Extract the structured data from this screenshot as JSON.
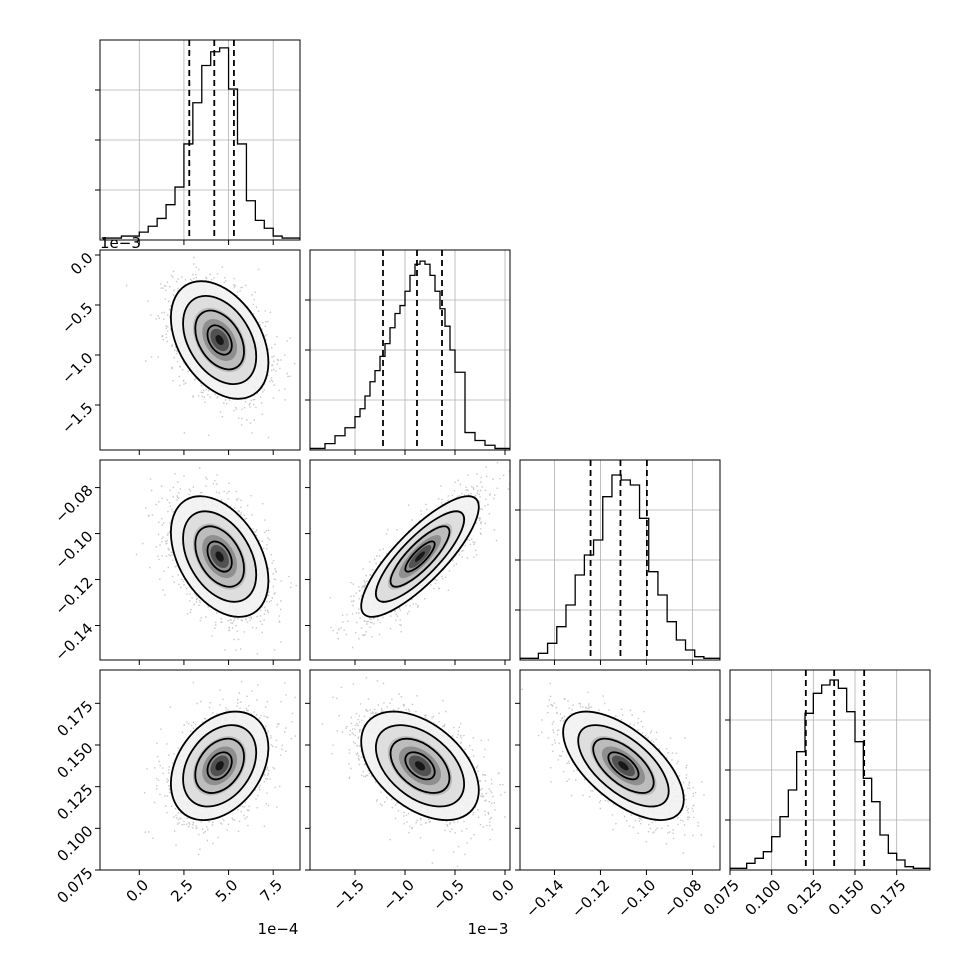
{
  "chart_data": {
    "type": "corner",
    "parameters": [
      {
        "range": [
          -2.2,
          9.0
        ],
        "ticks": [
          0.0,
          2.5,
          5.0,
          7.5
        ],
        "tick_labels": [
          "0.0",
          "2.5",
          "5.0",
          "7.5"
        ],
        "offset_label": "1e−4",
        "quantiles": [
          2.8,
          4.2,
          5.3
        ],
        "hist": {
          "edges": [
            -2.0,
            -1.0,
            0.0,
            0.5,
            1.0,
            1.5,
            2.0,
            2.5,
            3.0,
            3.5,
            4.0,
            4.5,
            5.0,
            5.5,
            6.0,
            6.5,
            7.0,
            7.5,
            8.0,
            9.0
          ],
          "counts": [
            0.05,
            0.1,
            0.2,
            0.35,
            0.55,
            0.9,
            1.35,
            2.45,
            3.5,
            4.45,
            4.8,
            4.9,
            3.85,
            2.45,
            1.0,
            0.5,
            0.3,
            0.1,
            0.05
          ],
          "ymax": 5.1
        }
      },
      {
        "range": [
          -1.95,
          0.05
        ],
        "ticks": [
          -1.5,
          -1.0,
          -0.5,
          0.0
        ],
        "tick_labels": [
          "−1.5",
          "−1.0",
          "−0.5",
          "0.0"
        ],
        "offset_label": "1e−3",
        "quantiles": [
          -1.22,
          -0.88,
          -0.63
        ],
        "hist": {
          "edges": [
            -1.95,
            -1.8,
            -1.7,
            -1.6,
            -1.5,
            -1.45,
            -1.4,
            -1.35,
            -1.3,
            -1.25,
            -1.2,
            -1.15,
            -1.1,
            -1.05,
            -1.0,
            -0.95,
            -0.9,
            -0.85,
            -0.8,
            -0.75,
            -0.7,
            -0.65,
            -0.6,
            -0.55,
            -0.5,
            -0.4,
            -0.3,
            -0.2,
            -0.1,
            0.05
          ],
          "counts": [
            0.05,
            0.2,
            0.45,
            0.7,
            1.05,
            1.3,
            1.7,
            2.15,
            2.5,
            2.95,
            3.35,
            3.85,
            4.3,
            4.55,
            5.0,
            5.5,
            5.85,
            5.95,
            5.85,
            5.5,
            5.0,
            4.45,
            3.9,
            3.15,
            2.45,
            0.55,
            0.3,
            0.15,
            0.05
          ],
          "ymax": 6.3
        }
      },
      {
        "range": [
          -0.155,
          -0.068
        ],
        "ticks": [
          -0.14,
          -0.12,
          -0.1,
          -0.08
        ],
        "tick_labels": [
          "−0.14",
          "−0.12",
          "−0.10",
          "−0.08"
        ],
        "offset_label": "",
        "quantiles": [
          -0.1243,
          -0.1113,
          -0.0998
        ],
        "hist": {
          "edges": [
            -0.155,
            -0.147,
            -0.143,
            -0.139,
            -0.135,
            -0.131,
            -0.127,
            -0.123,
            -0.119,
            -0.115,
            -0.111,
            -0.107,
            -0.103,
            -0.099,
            -0.095,
            -0.091,
            -0.087,
            -0.083,
            -0.079,
            -0.075,
            -0.068
          ],
          "counts": [
            0.05,
            0.2,
            0.5,
            1.0,
            1.65,
            2.55,
            3.15,
            3.6,
            4.9,
            5.55,
            5.4,
            5.25,
            4.25,
            2.65,
            1.95,
            1.15,
            0.6,
            0.3,
            0.1,
            0.05
          ],
          "ymax": 6.0
        }
      },
      {
        "range": [
          0.075,
          0.195
        ],
        "ticks": [
          0.075,
          0.1,
          0.125,
          0.15,
          0.175
        ],
        "tick_labels": [
          "0.075",
          "0.100",
          "0.125",
          "0.150",
          "0.175"
        ],
        "offset_label": "",
        "quantiles": [
          0.1205,
          0.1375,
          0.1555
        ],
        "hist": {
          "edges": [
            0.075,
            0.085,
            0.09,
            0.095,
            0.1,
            0.105,
            0.11,
            0.115,
            0.12,
            0.125,
            0.13,
            0.135,
            0.14,
            0.145,
            0.15,
            0.155,
            0.16,
            0.165,
            0.17,
            0.175,
            0.18,
            0.185,
            0.195
          ],
          "counts": [
            0.05,
            0.2,
            0.35,
            0.55,
            1.0,
            1.6,
            2.4,
            3.55,
            4.7,
            5.3,
            5.55,
            5.7,
            5.45,
            4.75,
            3.85,
            2.75,
            2.05,
            1.05,
            0.5,
            0.3,
            0.1,
            0.05
          ],
          "ymax": 6.0
        }
      }
    ],
    "pairs": [
      {
        "row": 1,
        "col": 0,
        "center": [
          4.5,
          -0.85
        ],
        "sd": [
          1.3,
          0.28
        ],
        "corr": -0.38
      },
      {
        "row": 2,
        "col": 0,
        "center": [
          4.5,
          -0.11
        ],
        "sd": [
          1.3,
          0.0125
        ],
        "corr": -0.4
      },
      {
        "row": 2,
        "col": 1,
        "center": [
          -0.85,
          -0.11
        ],
        "sd": [
          0.28,
          0.0125
        ],
        "corr": 0.82
      },
      {
        "row": 3,
        "col": 0,
        "center": [
          4.5,
          0.1375
        ],
        "sd": [
          1.3,
          0.0155
        ],
        "corr": 0.33
      },
      {
        "row": 3,
        "col": 1,
        "center": [
          -0.85,
          0.1375
        ],
        "sd": [
          0.28,
          0.0155
        ],
        "corr": -0.45
      },
      {
        "row": 3,
        "col": 2,
        "center": [
          -0.11,
          0.1375
        ],
        "sd": [
          0.0125,
          0.0155
        ],
        "corr": -0.62
      }
    ],
    "contour_levels_sigma": [
      0.5,
      1.0,
      1.5,
      2.0
    ],
    "colors": {
      "line": "#000000",
      "grid": "#b0b0b0",
      "scatter": "#9a9a9a"
    }
  }
}
